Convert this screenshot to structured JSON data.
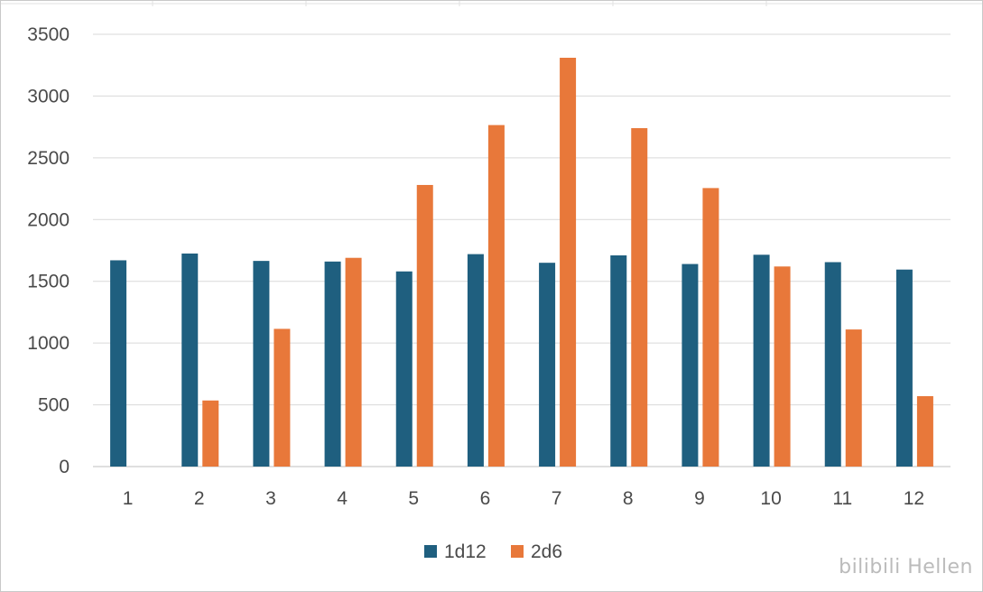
{
  "chart_data": {
    "type": "bar",
    "title": "",
    "xlabel": "",
    "ylabel": "",
    "categories": [
      "1",
      "2",
      "3",
      "4",
      "5",
      "6",
      "7",
      "8",
      "9",
      "10",
      "11",
      "12"
    ],
    "series": [
      {
        "name": "1d12",
        "color": "#1f5f7f",
        "values": [
          1670,
          1725,
          1665,
          1660,
          1580,
          1720,
          1650,
          1710,
          1640,
          1715,
          1655,
          1595
        ]
      },
      {
        "name": "2d6",
        "color": "#e8783a",
        "values": [
          0,
          535,
          1115,
          1690,
          2280,
          2765,
          3310,
          2740,
          2255,
          1620,
          1110,
          570
        ]
      }
    ],
    "ylim": [
      0,
      3500
    ],
    "yticks": [
      0,
      500,
      1000,
      1500,
      2000,
      2500,
      3000,
      3500
    ],
    "grid": true,
    "legend_position": "bottom"
  },
  "watermark": {
    "text": "bilibili Hellen"
  }
}
